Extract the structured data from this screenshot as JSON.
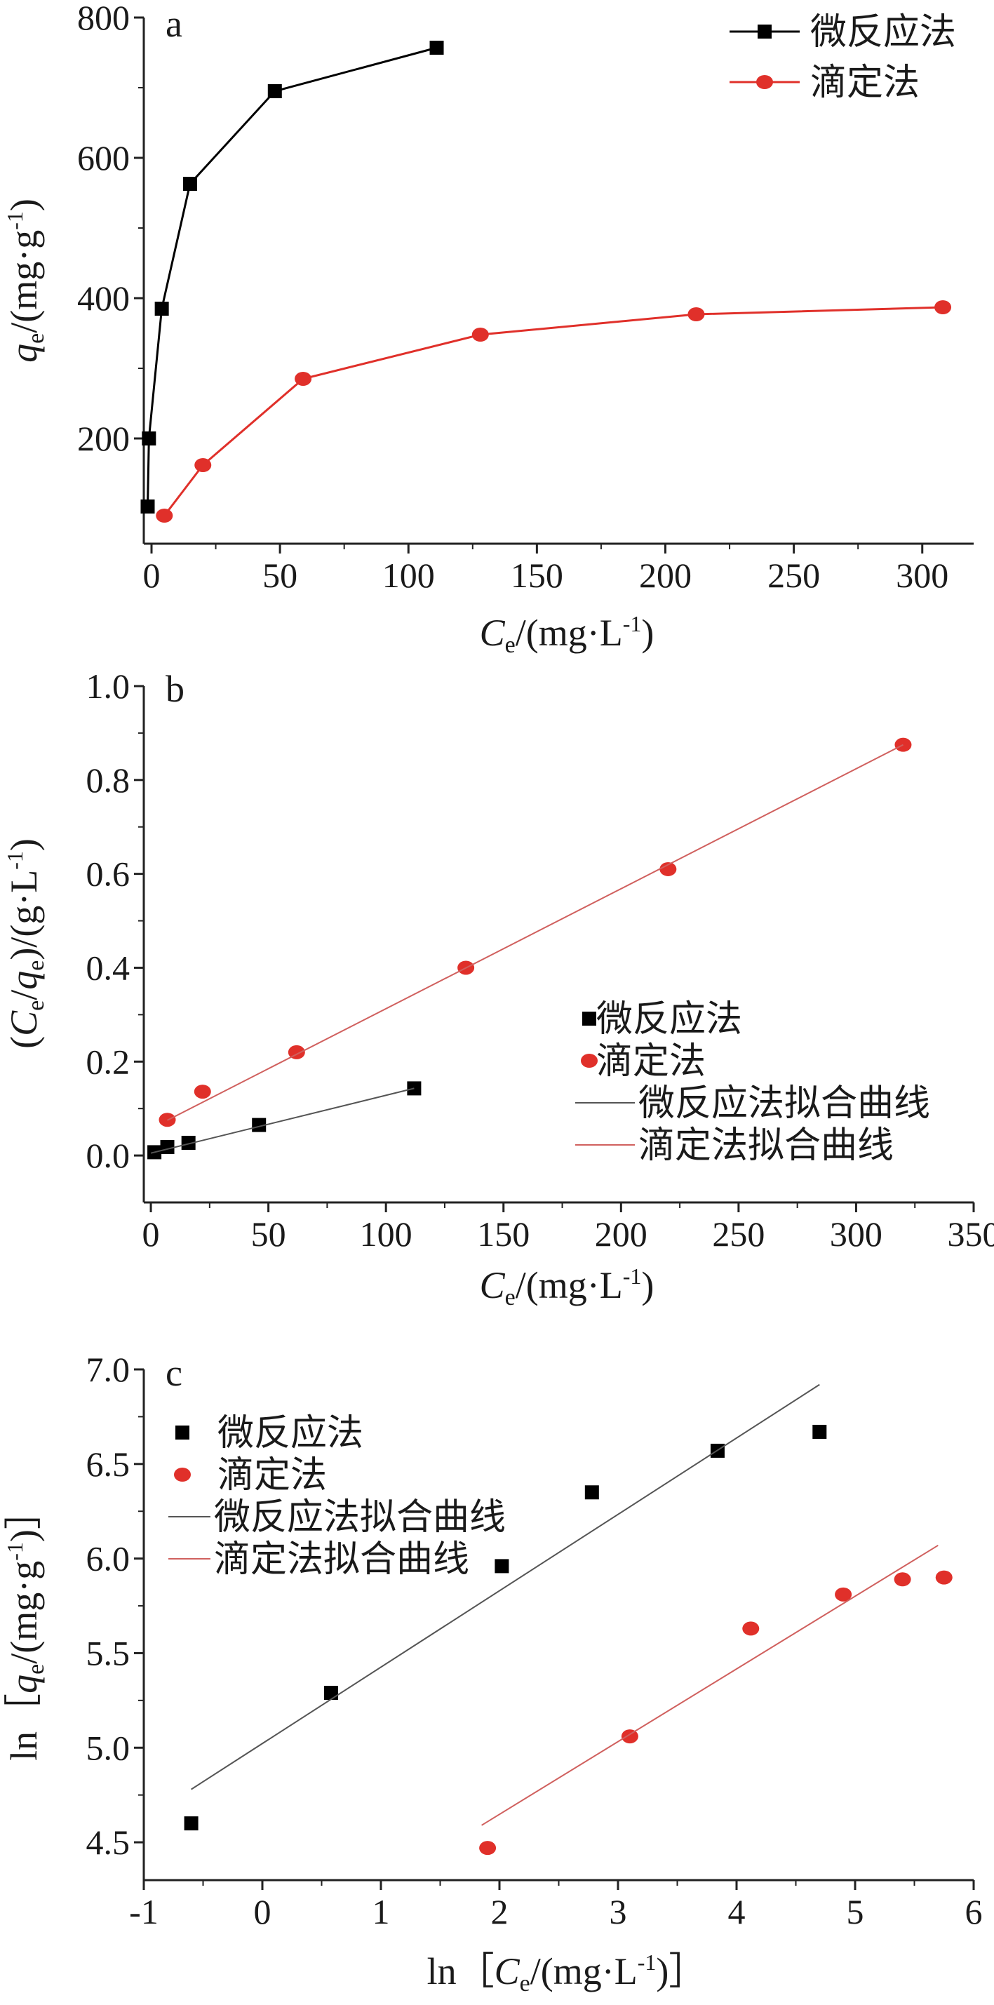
{
  "chart_data": [
    {
      "panel": "a",
      "type": "line",
      "xlabel": {
        "main": "C",
        "sub": "e",
        "rest": "/(mg·L",
        "sup": "-1",
        "end": ")"
      },
      "ylabel": {
        "main": "q",
        "sub": "e",
        "rest": "/(mg·g",
        "sup": "-1",
        "end": ")"
      },
      "xlim": [
        -3,
        320
      ],
      "ylim": [
        50,
        800
      ],
      "xticks": [
        0,
        50,
        100,
        150,
        200,
        250,
        300
      ],
      "yticks": [
        200,
        400,
        600,
        800
      ],
      "legend_position": "top-right",
      "series": [
        {
          "name": "微反应法",
          "color": "#000000",
          "marker": "square",
          "line": true,
          "points": [
            [
              -1.5,
              103
            ],
            [
              -1,
              200
            ],
            [
              4,
              385
            ],
            [
              15,
              563
            ],
            [
              48,
              695
            ],
            [
              111,
              757
            ]
          ]
        },
        {
          "name": "滴定法",
          "color": "#e0302a",
          "marker": "circle",
          "line": true,
          "points": [
            [
              5,
              90
            ],
            [
              20,
              162
            ],
            [
              59,
              285
            ],
            [
              128,
              348
            ],
            [
              212,
              377
            ],
            [
              308,
              387
            ]
          ]
        }
      ]
    },
    {
      "panel": "b",
      "type": "scatter",
      "xlabel": {
        "main": "C",
        "sub": "e",
        "rest": "/(mg·L",
        "sup": "-1",
        "end": ")"
      },
      "ylabel": {
        "pre": "(C",
        "sub1": "e",
        "mid": "/q",
        "sub2": "e",
        "rest": ")/(g·L",
        "sup": "-1",
        "end": ")"
      },
      "xlim": [
        -3,
        350
      ],
      "ylim": [
        -0.1,
        1.0
      ],
      "xticks": [
        0,
        50,
        100,
        150,
        200,
        250,
        300,
        350
      ],
      "yticks": [
        0.0,
        0.2,
        0.4,
        0.6,
        0.8,
        1.0
      ],
      "ytick_labels": [
        "0.0",
        "0.2",
        "0.4",
        "0.6",
        "0.8",
        "1.0"
      ],
      "legend_position": "center-right",
      "series": [
        {
          "name": "微反应法",
          "color": "#000000",
          "marker": "square",
          "line": false,
          "points": [
            [
              1.5,
              0.007
            ],
            [
              7,
              0.018
            ],
            [
              16,
              0.027
            ],
            [
              46,
              0.065
            ],
            [
              112,
              0.143
            ]
          ]
        },
        {
          "name": "滴定法",
          "color": "#e0302a",
          "marker": "circle",
          "line": false,
          "points": [
            [
              7,
              0.076
            ],
            [
              22,
              0.136
            ],
            [
              62,
              0.22
            ],
            [
              134,
              0.4
            ],
            [
              220,
              0.61
            ],
            [
              320,
              0.875
            ]
          ]
        },
        {
          "name": "微反应法拟合曲线",
          "color": "#555555",
          "marker": "none",
          "line": true,
          "points": [
            [
              0,
              0.005
            ],
            [
              112,
              0.143
            ]
          ]
        },
        {
          "name": "滴定法拟合曲线",
          "color": "#d0605e",
          "marker": "none",
          "line": true,
          "points": [
            [
              7,
              0.075
            ],
            [
              320,
              0.875
            ]
          ]
        }
      ]
    },
    {
      "panel": "c",
      "type": "scatter",
      "xlabel": {
        "pre": "ln［",
        "main": "C",
        "sub": "e",
        "rest": "/(mg·L",
        "sup": "-1",
        "end": ")］"
      },
      "ylabel": {
        "pre": "ln［",
        "main": "q",
        "sub": "e",
        "rest": "/(mg·g",
        "sup": "-1",
        "end": ")］"
      },
      "xlim": [
        -1,
        6
      ],
      "ylim": [
        4.3,
        7.0
      ],
      "xticks": [
        -1,
        0,
        1,
        2,
        3,
        4,
        5,
        6
      ],
      "yticks": [
        4.5,
        5.0,
        5.5,
        6.0,
        6.5,
        7.0
      ],
      "ytick_labels": [
        "4.5",
        "5.0",
        "5.5",
        "6.0",
        "6.5",
        "7.0"
      ],
      "legend_position": "top-left",
      "series": [
        {
          "name": "微反应法",
          "color": "#000000",
          "marker": "square",
          "line": false,
          "points": [
            [
              -0.6,
              4.6
            ],
            [
              0.58,
              5.29
            ],
            [
              2.02,
              5.96
            ],
            [
              2.78,
              6.35
            ],
            [
              3.84,
              6.57
            ],
            [
              4.7,
              6.67
            ]
          ]
        },
        {
          "name": "滴定法",
          "color": "#e0302a",
          "marker": "circle",
          "line": false,
          "points": [
            [
              1.9,
              4.47
            ],
            [
              3.1,
              5.06
            ],
            [
              4.12,
              5.63
            ],
            [
              4.9,
              5.81
            ],
            [
              5.4,
              5.89
            ],
            [
              5.75,
              5.9
            ]
          ]
        },
        {
          "name": "微反应法拟合曲线",
          "color": "#555555",
          "marker": "none",
          "line": true,
          "points": [
            [
              -0.6,
              4.78
            ],
            [
              4.7,
              6.92
            ]
          ]
        },
        {
          "name": "滴定法拟合曲线",
          "color": "#d0605e",
          "marker": "none",
          "line": true,
          "points": [
            [
              1.85,
              4.59
            ],
            [
              5.7,
              6.07
            ]
          ]
        }
      ]
    }
  ]
}
